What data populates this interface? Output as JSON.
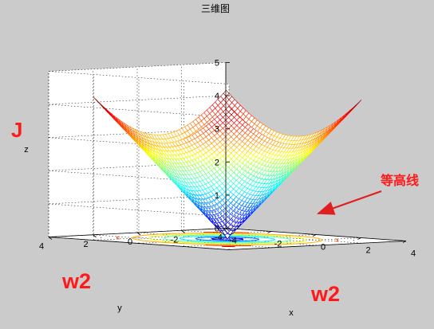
{
  "chart_data": {
    "type": "surface",
    "title": "三维图",
    "xlabel": "x",
    "ylabel": "y",
    "zlabel": "z",
    "xlim": [
      -4,
      4
    ],
    "ylim": [
      -4,
      4
    ],
    "zlim": [
      0,
      5
    ],
    "xticks": [
      -4,
      -2,
      0,
      2,
      4
    ],
    "yticks": [
      -4,
      -2,
      0,
      2,
      4
    ],
    "zticks": [
      0,
      1,
      2,
      3,
      4,
      5
    ],
    "grid": true,
    "colormap": "jet",
    "function": "z = sqrt(x^2 + y^2)",
    "x_range": [
      -3,
      3
    ],
    "y_range": [
      -3,
      3
    ],
    "z_range": [
      0,
      4.24
    ],
    "contour_levels": [
      0.5,
      1,
      1.5,
      2,
      2.5,
      3,
      3.5,
      4
    ],
    "annotations": {
      "z_axis_overlay": "J",
      "y_axis_overlay": "w2",
      "x_axis_overlay": "w2",
      "contour_label": "等高线"
    },
    "colors": {
      "overlay_text": "#ff1a1a",
      "arrow": "#e02020",
      "background": "#cbcbcb",
      "axes_face": "#ffffff"
    }
  }
}
